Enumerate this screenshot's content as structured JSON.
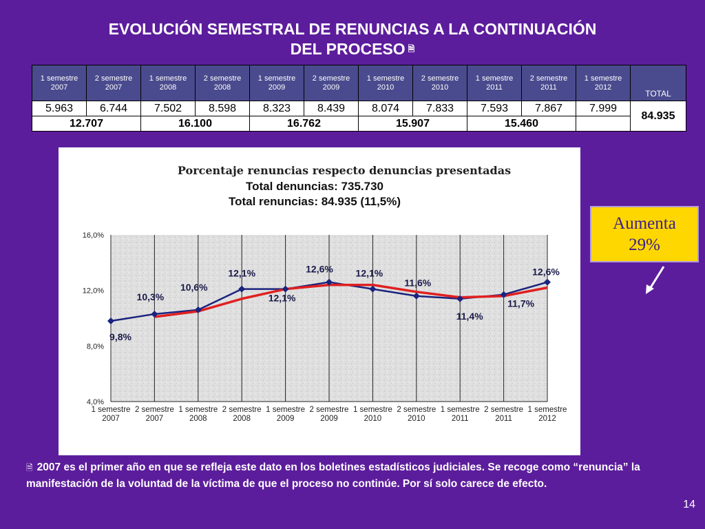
{
  "slide": {
    "title_line1": "EVOLUCIÓN SEMESTRAL DE RENUNCIAS A LA CONTINUACIÓN",
    "title_line2": "DEL PROCESO",
    "page_number": "14"
  },
  "table": {
    "headers": [
      {
        "l1": "1 semestre",
        "l2": "2007"
      },
      {
        "l1": "2 semestre",
        "l2": "2007"
      },
      {
        "l1": "1 semestre",
        "l2": "2008"
      },
      {
        "l1": "2 semestre",
        "l2": "2008"
      },
      {
        "l1": "1 semestre",
        "l2": "2009"
      },
      {
        "l1": "2 semestre",
        "l2": "2009"
      },
      {
        "l1": "1 semestre",
        "l2": "2010"
      },
      {
        "l1": "2 semestre",
        "l2": "2010"
      },
      {
        "l1": "1 semestre",
        "l2": "2011"
      },
      {
        "l1": "2 semestre",
        "l2": "2011"
      },
      {
        "l1": "1 semestre",
        "l2": "2012"
      }
    ],
    "total_header": "TOTAL",
    "values": [
      "5.963",
      "6.744",
      "7.502",
      "8.598",
      "8.323",
      "8.439",
      "8.074",
      "7.833",
      "7.593",
      "7.867",
      "7.999"
    ],
    "yearly_sums": [
      "12.707",
      "16.100",
      "16.762",
      "15.907",
      "15.460",
      ""
    ],
    "total": "84.935"
  },
  "chart_data": {
    "type": "line",
    "title": "Porcentaje renuncias respecto denuncias presentadas",
    "subtitle_1": "Total denuncias: 735.730",
    "subtitle_2": "Total renuncias: 84.935 (11,5%)",
    "categories": [
      {
        "l1": "1 semestre",
        "l2": "2007"
      },
      {
        "l1": "2 semestre",
        "l2": "2007"
      },
      {
        "l1": "1 semestre",
        "l2": "2008"
      },
      {
        "l1": "2 semestre",
        "l2": "2008"
      },
      {
        "l1": "1 semestre",
        "l2": "2009"
      },
      {
        "l1": "2 semestre",
        "l2": "2009"
      },
      {
        "l1": "1 semestre",
        "l2": "2010"
      },
      {
        "l1": "2 semestre",
        "l2": "2010"
      },
      {
        "l1": "1 semestre",
        "l2": "2011"
      },
      {
        "l1": "2 semestre",
        "l2": "2011"
      },
      {
        "l1": "1 semestre",
        "l2": "2012"
      }
    ],
    "series": [
      {
        "values": [
          9.8,
          10.3,
          10.6,
          12.1,
          12.1,
          12.6,
          12.1,
          11.6,
          11.4,
          11.7,
          12.6
        ],
        "color": "#1a237e"
      },
      {
        "values": [
          null,
          10.1,
          10.5,
          11.4,
          12.1,
          12.4,
          12.4,
          11.9,
          11.5,
          11.6,
          12.2
        ],
        "color": "#e02020"
      }
    ],
    "data_labels": [
      "9,8%",
      "10,3%",
      "10,6%",
      "12,1%",
      "12,1%",
      "12,6%",
      "12,1%",
      "11,6%",
      "11,4%",
      "11,7%",
      "12,6%"
    ],
    "y_ticks": [
      4.0,
      8.0,
      12.0,
      16.0
    ],
    "y_tick_labels": [
      "4,0%",
      "8,0%",
      "12,0%",
      "16,0%"
    ],
    "ylim": [
      4.0,
      16.0
    ],
    "grid": "vertical"
  },
  "callout": {
    "line1": "Aumenta",
    "line2": "29%"
  },
  "footnote": "2007 es el primer año en que se refleja este dato en los boletines estadísticos judiciales. Se recoge como “renuncia” la manifestación de la voluntad de la víctima de que el proceso no continúe. Por sí solo carece de efecto.",
  "colors": {
    "background": "#5c1d9c",
    "table_header": "#4a4a8e",
    "callout_bg": "#ffd700",
    "callout_text": "#3a1c8c"
  }
}
